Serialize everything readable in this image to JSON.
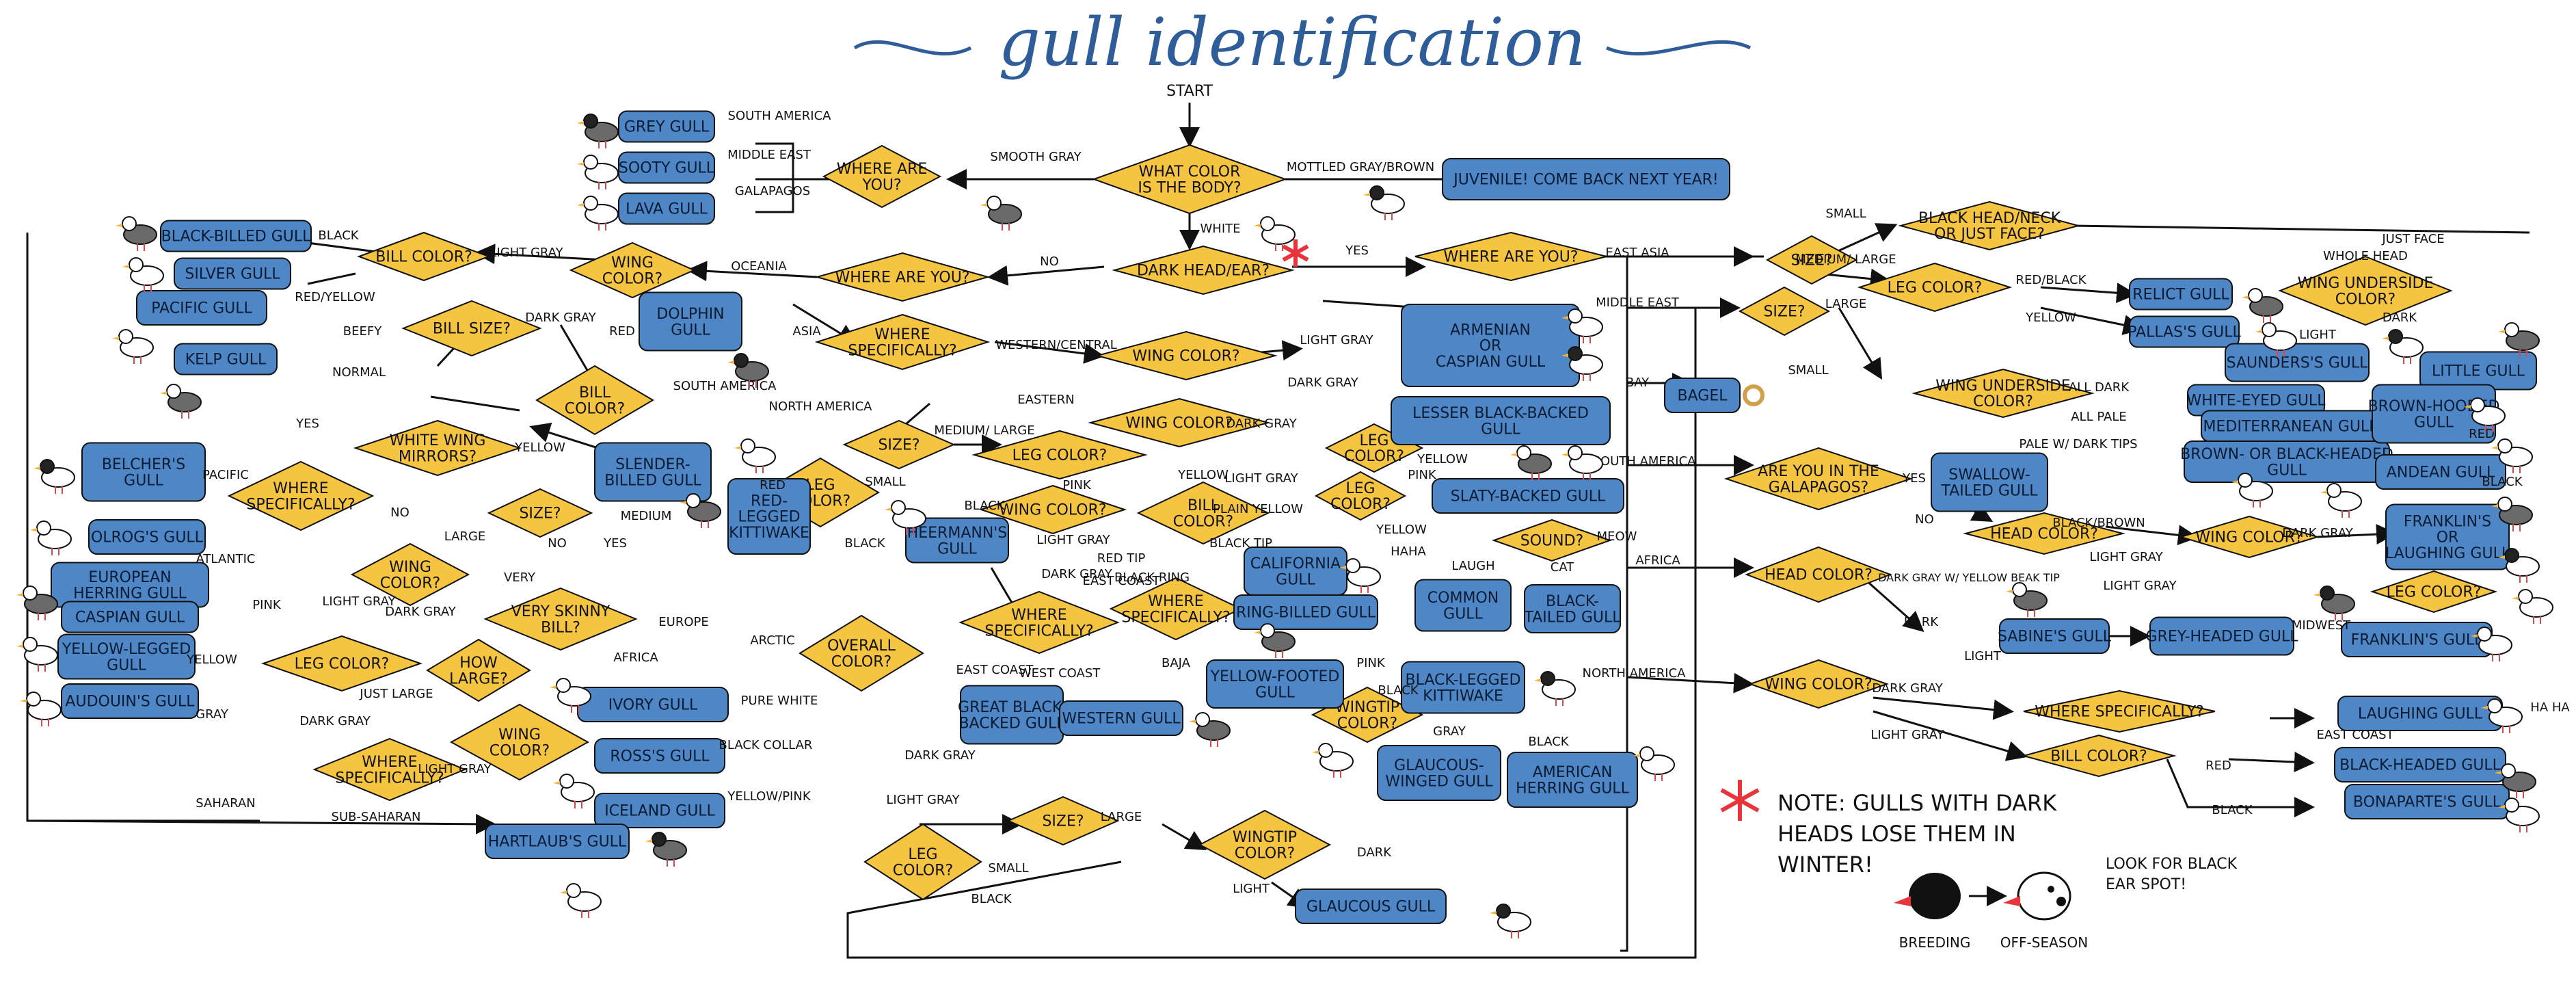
{
  "title": "gull identification",
  "colors": {
    "decision": "#f5c542",
    "leaf": "#4f86c6",
    "line": "#111111",
    "accent": "#e8343a",
    "title": "#2f5d9a"
  },
  "start_label": "START",
  "note": [
    "NOTE: GULLS WITH DARK",
    "HEADS LOSE THEM IN",
    "WINTER!"
  ],
  "note_aside": [
    "LOOK FOR BLACK",
    "EAR SPOT!"
  ],
  "legend_breeding": "BREEDING",
  "legend_offseason": "OFF-SEASON",
  "decisions": [
    {
      "id": "color",
      "lines": [
        "WHAT COLOR",
        "IS THE BODY?"
      ]
    },
    {
      "id": "where1",
      "lines": [
        "WHERE ARE",
        "YOU?"
      ]
    },
    {
      "id": "darkhead",
      "lines": [
        "DARK HEAD/EAR?"
      ]
    },
    {
      "id": "whereyes",
      "lines": [
        "WHERE  ARE  YOU?"
      ]
    },
    {
      "id": "whereno",
      "lines": [
        "WHERE ARE YOU?"
      ]
    },
    {
      "id": "wingoc",
      "lines": [
        "WING",
        "COLOR?"
      ]
    },
    {
      "id": "billcol1",
      "lines": [
        "BILL COLOR?"
      ]
    },
    {
      "id": "billsize",
      "lines": [
        "BILL SIZE?"
      ]
    },
    {
      "id": "billcol2",
      "lines": [
        "BILL",
        "COLOR?"
      ]
    },
    {
      "id": "whitewing",
      "lines": [
        "WHITE WING",
        "MIRRORS?"
      ]
    },
    {
      "id": "wherespec1",
      "lines": [
        "WHERE",
        "SPECIFICALLY?"
      ]
    },
    {
      "id": "size1",
      "lines": [
        "SIZE?"
      ]
    },
    {
      "id": "wingc1",
      "lines": [
        "WING",
        "COLOR?"
      ]
    },
    {
      "id": "verybill",
      "lines": [
        "VERY SKINNY",
        "BILL?"
      ]
    },
    {
      "id": "howlarge",
      "lines": [
        "HOW",
        "LARGE?"
      ]
    },
    {
      "id": "legc1",
      "lines": [
        "LEG COLOR?"
      ]
    },
    {
      "id": "overall",
      "lines": [
        "OVERALL",
        "COLOR?"
      ]
    },
    {
      "id": "wingc2",
      "lines": [
        "WING",
        "COLOR?"
      ]
    },
    {
      "id": "wherespec2",
      "lines": [
        "WHERE",
        "SPECIFICALLY?"
      ]
    },
    {
      "id": "wherespec3",
      "lines": [
        "WHERE",
        "SPECIFICALLY?"
      ]
    },
    {
      "id": "size2",
      "lines": [
        "SIZE?"
      ]
    },
    {
      "id": "legc2",
      "lines": [
        "LEG",
        "COLOR?"
      ]
    },
    {
      "id": "wingc3",
      "lines": [
        "WING COLOR?"
      ]
    },
    {
      "id": "wingc4",
      "lines": [
        "WING COLOR?"
      ]
    },
    {
      "id": "legc3",
      "lines": [
        "LEG COLOR?"
      ]
    },
    {
      "id": "wingc5",
      "lines": [
        "WING COLOR?"
      ]
    },
    {
      "id": "wherespec4",
      "lines": [
        "WHERE",
        "SPECIFICALLY?"
      ]
    },
    {
      "id": "billc3",
      "lines": [
        "BILL",
        "COLOR?"
      ]
    },
    {
      "id": "wherespec5",
      "lines": [
        "WHERE",
        "SPECIFICALLY?"
      ]
    },
    {
      "id": "legc4",
      "lines": [
        "LEG",
        "COLOR?"
      ]
    },
    {
      "id": "legc5",
      "lines": [
        "LEG",
        "COLOR?"
      ]
    },
    {
      "id": "wingtip",
      "lines": [
        "WINGTIP",
        "COLOR?"
      ]
    },
    {
      "id": "sound",
      "lines": [
        "SOUND?"
      ]
    },
    {
      "id": "size3",
      "lines": [
        "SIZE?"
      ]
    },
    {
      "id": "legc6",
      "lines": [
        "LEG",
        "COLOR?"
      ]
    },
    {
      "id": "wingtip2",
      "lines": [
        "WINGTIP",
        "COLOR?"
      ]
    },
    {
      "id": "size4",
      "lines": [
        "SIZE?"
      ]
    },
    {
      "id": "size5",
      "lines": [
        "SIZE?"
      ]
    },
    {
      "id": "blackhead",
      "lines": [
        "BLACK HEAD/NECK",
        "OR JUST FACE?"
      ]
    },
    {
      "id": "legc7",
      "lines": [
        "LEG COLOR?"
      ]
    },
    {
      "id": "wingunder1",
      "lines": [
        "WING UNDERSIDE",
        "COLOR?"
      ]
    },
    {
      "id": "wingunder2",
      "lines": [
        "WING UNDERSIDE",
        "COLOR?"
      ]
    },
    {
      "id": "galapagos",
      "lines": [
        "ARE YOU IN THE",
        "GALAPAGOS?"
      ]
    },
    {
      "id": "headc1",
      "lines": [
        "HEAD COLOR?"
      ]
    },
    {
      "id": "wingc6",
      "lines": [
        "WING COLOR?"
      ]
    },
    {
      "id": "legc8",
      "lines": [
        "LEG COLOR?"
      ]
    },
    {
      "id": "headc2",
      "lines": [
        "HEAD COLOR?"
      ]
    },
    {
      "id": "wingc7",
      "lines": [
        "WING COLOR?"
      ]
    },
    {
      "id": "wherespec6",
      "lines": [
        "WHERE SPECIFICALLY?"
      ]
    },
    {
      "id": "billc4",
      "lines": [
        "BILL COLOR?"
      ]
    }
  ],
  "leaves": [
    {
      "id": "juvenile",
      "lines": [
        "JUVENILE! COME BACK NEXT YEAR!"
      ]
    },
    {
      "id": "grey",
      "lines": [
        "GREY GULL"
      ]
    },
    {
      "id": "sooty",
      "lines": [
        "SOOTY GULL"
      ]
    },
    {
      "id": "lava",
      "lines": [
        "LAVA GULL"
      ]
    },
    {
      "id": "blackbilled",
      "lines": [
        "BLACK-BILLED GULL"
      ]
    },
    {
      "id": "silver",
      "lines": [
        "SILVER GULL"
      ]
    },
    {
      "id": "pacific",
      "lines": [
        "PACIFIC GULL"
      ]
    },
    {
      "id": "kelp",
      "lines": [
        "KELP GULL"
      ]
    },
    {
      "id": "dolphin",
      "lines": [
        "DOLPHIN",
        "GULL"
      ]
    },
    {
      "id": "belcher",
      "lines": [
        "BELCHER'S",
        "GULL"
      ]
    },
    {
      "id": "olrog",
      "lines": [
        "OLROG'S GULL"
      ]
    },
    {
      "id": "european",
      "lines": [
        "EUROPEAN",
        "HERRING GULL"
      ]
    },
    {
      "id": "caspian",
      "lines": [
        "CASPIAN GULL"
      ]
    },
    {
      "id": "yellowlegged",
      "lines": [
        "YELLOW-LEGGED",
        "GULL"
      ]
    },
    {
      "id": "audouin",
      "lines": [
        "AUDOUIN'S GULL"
      ]
    },
    {
      "id": "slender",
      "lines": [
        "SLENDER-",
        "BILLED GULL"
      ]
    },
    {
      "id": "redlegged",
      "lines": [
        "RED-",
        "LEGGED",
        "KITTIWAKE"
      ]
    },
    {
      "id": "heermann",
      "lines": [
        "HEERMANN'S",
        "GULL"
      ]
    },
    {
      "id": "ivory",
      "lines": [
        "IVORY GULL"
      ]
    },
    {
      "id": "ross",
      "lines": [
        "ROSS'S GULL"
      ]
    },
    {
      "id": "iceland",
      "lines": [
        "ICELAND GULL"
      ]
    },
    {
      "id": "hartlaub",
      "lines": [
        "HARTLAUB'S GULL"
      ]
    },
    {
      "id": "armenian",
      "lines": [
        "ARMENIAN",
        "OR",
        "CASPIAN GULL"
      ]
    },
    {
      "id": "lesser",
      "lines": [
        "LESSER BLACK-BACKED",
        "GULL"
      ]
    },
    {
      "id": "slaty",
      "lines": [
        "SLATY-BACKED GULL"
      ]
    },
    {
      "id": "california",
      "lines": [
        "CALIFORNIA",
        "GULL"
      ]
    },
    {
      "id": "ringbilled",
      "lines": [
        "RING-BILLED GULL"
      ]
    },
    {
      "id": "yellowfooted",
      "lines": [
        "YELLOW-FOOTED",
        "GULL"
      ]
    },
    {
      "id": "common",
      "lines": [
        "COMMON",
        "GULL"
      ]
    },
    {
      "id": "blacktailed",
      "lines": [
        "BLACK-",
        "TAILED GULL"
      ]
    },
    {
      "id": "greatblack",
      "lines": [
        "GREAT BLACK-",
        "BACKED GULL"
      ]
    },
    {
      "id": "western",
      "lines": [
        "WESTERN GULL"
      ]
    },
    {
      "id": "blacklegged",
      "lines": [
        "BLACK-LEGGED",
        "KITTIWAKE"
      ]
    },
    {
      "id": "glaucouswinged",
      "lines": [
        "GLAUCOUS-",
        "WINGED GULL"
      ]
    },
    {
      "id": "american",
      "lines": [
        "AMERICAN",
        "HERRING GULL"
      ]
    },
    {
      "id": "glaucous",
      "lines": [
        "GLAUCOUS GULL"
      ]
    },
    {
      "id": "bagel",
      "lines": [
        "BAGEL"
      ]
    },
    {
      "id": "relict",
      "lines": [
        "RELICT GULL"
      ]
    },
    {
      "id": "pallas",
      "lines": [
        "PALLAS'S GULL"
      ]
    },
    {
      "id": "saunders",
      "lines": [
        "SAUNDERS'S GULL"
      ]
    },
    {
      "id": "little",
      "lines": [
        "LITTLE GULL"
      ]
    },
    {
      "id": "whiteeyed",
      "lines": [
        "WHITE-EYED GULL"
      ]
    },
    {
      "id": "mediterranean",
      "lines": [
        "MEDITERRANEAN GULL"
      ]
    },
    {
      "id": "brownorblack",
      "lines": [
        "BROWN- OR BLACK-HEADED",
        "GULL"
      ]
    },
    {
      "id": "brownhooded",
      "lines": [
        "BROWN-HOODED",
        "GULL"
      ]
    },
    {
      "id": "swallow",
      "lines": [
        "SWALLOW-",
        "TAILED GULL"
      ]
    },
    {
      "id": "andean",
      "lines": [
        "ANDEAN GULL"
      ]
    },
    {
      "id": "franklinlaughing",
      "lines": [
        "FRANKLIN'S",
        "OR",
        "LAUGHING GULL"
      ]
    },
    {
      "id": "sabine",
      "lines": [
        "SABINE'S GULL"
      ]
    },
    {
      "id": "greyheaded",
      "lines": [
        "GREY-HEADED GULL"
      ]
    },
    {
      "id": "franklin",
      "lines": [
        "FRANKLIN'S GULL"
      ]
    },
    {
      "id": "laughing",
      "lines": [
        "LAUGHING GULL"
      ]
    },
    {
      "id": "blackheaded",
      "lines": [
        "BLACK-HEADED GULL"
      ]
    },
    {
      "id": "bonaparte",
      "lines": [
        "BONAPARTE'S GULL"
      ]
    }
  ],
  "labels": [
    {
      "id": "smoothgray",
      "text": "SMOOTH GRAY"
    },
    {
      "id": "mottled",
      "text": "MOTTLED GRAY/BROWN"
    },
    {
      "id": "white",
      "text": "WHITE"
    },
    {
      "id": "southamerica1",
      "text": "SOUTH AMERICA"
    },
    {
      "id": "middleeast1",
      "text": "MIDDLE EAST"
    },
    {
      "id": "galapagos_l",
      "text": "GALAPAGOS"
    },
    {
      "id": "no1",
      "text": "NO"
    },
    {
      "id": "yes1",
      "text": "YES"
    },
    {
      "id": "oceania",
      "text": "OCEANIA"
    },
    {
      "id": "lightgray1",
      "text": "LIGHT GRAY"
    },
    {
      "id": "darkgray1",
      "text": "DARK GRAY"
    },
    {
      "id": "black1",
      "text": "BLACK"
    },
    {
      "id": "redyellow",
      "text": "RED/YELLOW"
    },
    {
      "id": "beefy",
      "text": "BEEFY"
    },
    {
      "id": "normal",
      "text": "NORMAL"
    },
    {
      "id": "red1",
      "text": "RED"
    },
    {
      "id": "southamerica2",
      "text": "SOUTH AMERICA"
    },
    {
      "id": "yellow1",
      "text": "YELLOW"
    },
    {
      "id": "yes2",
      "text": "YES"
    },
    {
      "id": "no2",
      "text": "NO"
    },
    {
      "id": "pacific_l",
      "text": "PACIFIC"
    },
    {
      "id": "atlantic1",
      "text": "ATLANTIC"
    },
    {
      "id": "asia",
      "text": "ASIA"
    },
    {
      "id": "northamerica1",
      "text": "NORTH AMERICA"
    },
    {
      "id": "westcentral",
      "text": "WESTERN/CENTRAL"
    },
    {
      "id": "eastern",
      "text": "EASTERN"
    },
    {
      "id": "lightgray2",
      "text": "LIGHT GRAY"
    },
    {
      "id": "darkgray2",
      "text": "DARK GRAY"
    },
    {
      "id": "mediumlarge1",
      "text": "MEDIUM/ LARGE"
    },
    {
      "id": "small1",
      "text": "SMALL"
    },
    {
      "id": "red2",
      "text": "RED"
    },
    {
      "id": "black2",
      "text": "BLACK"
    },
    {
      "id": "pink1",
      "text": "PINK"
    },
    {
      "id": "yellow2",
      "text": "YELLOW"
    },
    {
      "id": "black3",
      "text": "BLACK"
    },
    {
      "id": "lightgray3",
      "text": "LIGHT GRAY"
    },
    {
      "id": "darkgray3",
      "text": "DARK GRAY"
    },
    {
      "id": "medium",
      "text": "MEDIUM"
    },
    {
      "id": "large1",
      "text": "LARGE"
    },
    {
      "id": "no3",
      "text": "NO"
    },
    {
      "id": "yes3",
      "text": "YES"
    },
    {
      "id": "very",
      "text": "VERY"
    },
    {
      "id": "lightgray4",
      "text": "LIGHT GRAY"
    },
    {
      "id": "darkgray4",
      "text": "DARK GRAY"
    },
    {
      "id": "europe",
      "text": "EUROPE"
    },
    {
      "id": "arctic",
      "text": "ARCTIC"
    },
    {
      "id": "africa1",
      "text": "AFRICA"
    },
    {
      "id": "pink2",
      "text": "PINK"
    },
    {
      "id": "yellow3",
      "text": "YELLOW"
    },
    {
      "id": "gray1",
      "text": "GRAY"
    },
    {
      "id": "justlarge",
      "text": "JUST LARGE"
    },
    {
      "id": "darkgray5",
      "text": "DARK GRAY"
    },
    {
      "id": "lightgray5",
      "text": "LIGHT GRAY"
    },
    {
      "id": "purewhite",
      "text": "PURE WHITE"
    },
    {
      "id": "blackcollar",
      "text": "BLACK COLLAR"
    },
    {
      "id": "yellowpink",
      "text": "YELLOW/PINK"
    },
    {
      "id": "saharan",
      "text": "SAHARAN"
    },
    {
      "id": "subsaharan",
      "text": "SUB-SAHARAN"
    },
    {
      "id": "eastcoast1",
      "text": "EAST COAST"
    },
    {
      "id": "westcoast",
      "text": "WEST COAST"
    },
    {
      "id": "darkgray6",
      "text": "DARK GRAY"
    },
    {
      "id": "lightgray6",
      "text": "LIGHT GRAY"
    },
    {
      "id": "large2",
      "text": "LARGE"
    },
    {
      "id": "small2",
      "text": "SMALL"
    },
    {
      "id": "black4",
      "text": "BLACK"
    },
    {
      "id": "dark1",
      "text": "DARK"
    },
    {
      "id": "light1",
      "text": "LIGHT"
    },
    {
      "id": "darkgray7",
      "text": "DARK GRAY"
    },
    {
      "id": "lightgray7",
      "text": "LIGHT GRAY"
    },
    {
      "id": "yellow4",
      "text": "YELLOW"
    },
    {
      "id": "pink3",
      "text": "PINK"
    },
    {
      "id": "plainyellow",
      "text": "PLAIN YELLOW"
    },
    {
      "id": "blacktip",
      "text": "BLACK TIP"
    },
    {
      "id": "redtip",
      "text": "RED TIP"
    },
    {
      "id": "blackring",
      "text": "BLACK RING"
    },
    {
      "id": "eastcoast2",
      "text": "EAST COAST"
    },
    {
      "id": "baja",
      "text": "BAJA"
    },
    {
      "id": "yellow5",
      "text": "YELLOW"
    },
    {
      "id": "haha",
      "text": "HAHA"
    },
    {
      "id": "laugh",
      "text": "LAUGH"
    },
    {
      "id": "cat",
      "text": "CAT"
    },
    {
      "id": "meow",
      "text": "MEOW"
    },
    {
      "id": "pink4",
      "text": "PINK"
    },
    {
      "id": "black5",
      "text": "BLACK"
    },
    {
      "id": "gray2",
      "text": "GRAY"
    },
    {
      "id": "black6",
      "text": "BLACK"
    },
    {
      "id": "eastasia",
      "text": "EAST ASIA"
    },
    {
      "id": "middleeast2",
      "text": "MIDDLE EAST"
    },
    {
      "id": "bay",
      "text": "BAY"
    },
    {
      "id": "southamerica3",
      "text": "SOUTH AMERICA"
    },
    {
      "id": "africa2",
      "text": "AFRICA"
    },
    {
      "id": "northamerica2",
      "text": "NORTH AMERICA"
    },
    {
      "id": "small3",
      "text": "SMALL"
    },
    {
      "id": "mediumlarge2",
      "text": "MEDIUM/ LARGE"
    },
    {
      "id": "large3",
      "text": "LARGE"
    },
    {
      "id": "small4",
      "text": "SMALL"
    },
    {
      "id": "justface",
      "text": "JUST FACE"
    },
    {
      "id": "wholehead",
      "text": "WHOLE HEAD"
    },
    {
      "id": "redblack",
      "text": "RED/BLACK"
    },
    {
      "id": "yellow6",
      "text": "YELLOW"
    },
    {
      "id": "light2",
      "text": "LIGHT"
    },
    {
      "id": "dark2",
      "text": "DARK"
    },
    {
      "id": "alldark",
      "text": "ALL DARK"
    },
    {
      "id": "allpale",
      "text": "ALL PALE"
    },
    {
      "id": "palewdark",
      "text": "PALE W/ DARK TIPS"
    },
    {
      "id": "yes4",
      "text": "YES"
    },
    {
      "id": "no4",
      "text": "NO"
    },
    {
      "id": "blackbrown",
      "text": "BLACK/BROWN"
    },
    {
      "id": "darkgray8",
      "text": "DARK GRAY"
    },
    {
      "id": "lightgray8",
      "text": "LIGHT GRAY"
    },
    {
      "id": "red3",
      "text": "RED"
    },
    {
      "id": "black7",
      "text": "BLACK"
    },
    {
      "id": "darkgrayyellow",
      "text": "DARK GRAY W/ YELLOW BEAK TIP"
    },
    {
      "id": "lightgray9",
      "text": "LIGHT GRAY"
    },
    {
      "id": "dark3",
      "text": "DARK"
    },
    {
      "id": "light3",
      "text": "LIGHT"
    },
    {
      "id": "midwest",
      "text": "MIDWEST"
    },
    {
      "id": "eastcoast3",
      "text": "EAST COAST"
    },
    {
      "id": "darkgray9",
      "text": "DARK GRAY"
    },
    {
      "id": "lightgray10",
      "text": "LIGHT GRAY"
    },
    {
      "id": "red4",
      "text": "RED"
    },
    {
      "id": "black8",
      "text": "BLACK"
    },
    {
      "id": "haha2",
      "text": "HA HA"
    }
  ]
}
